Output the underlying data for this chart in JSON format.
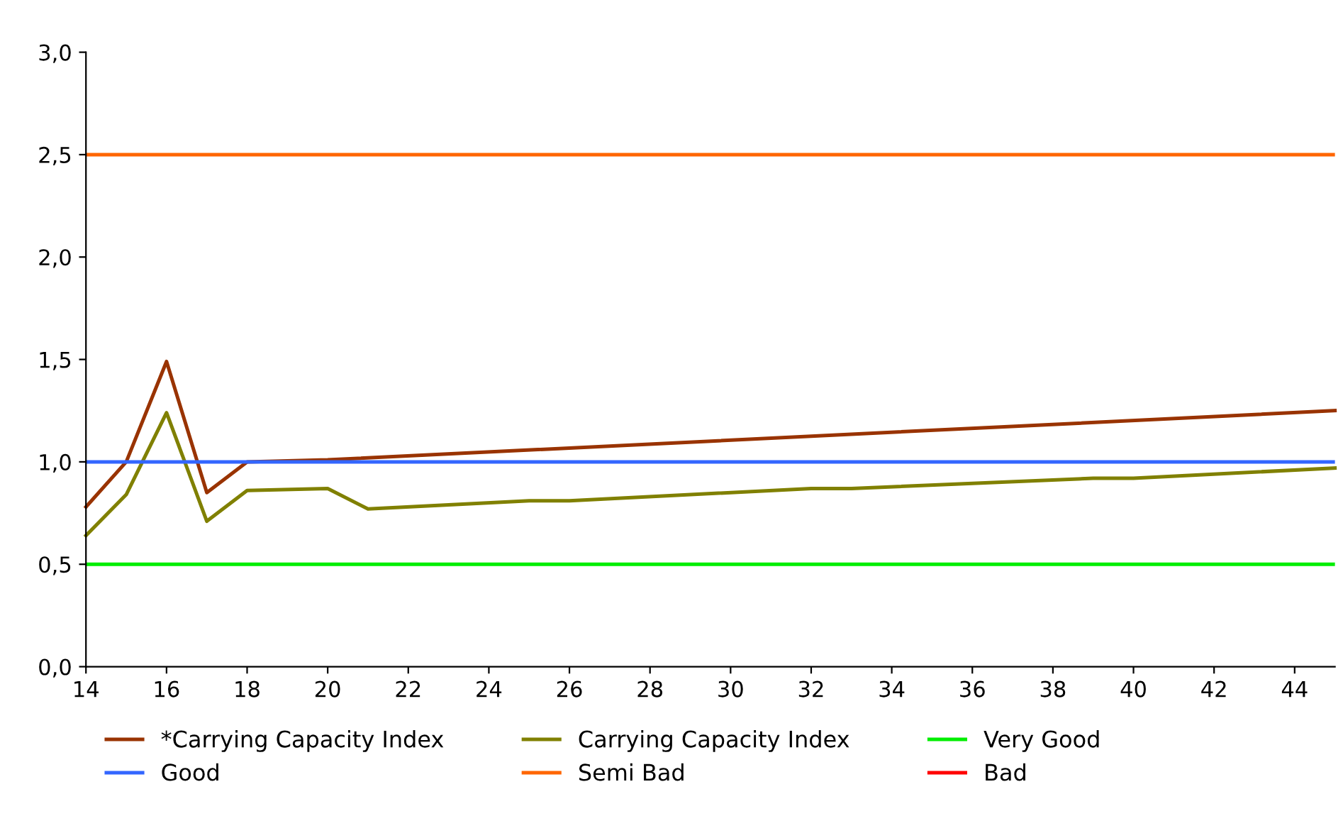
{
  "chart_data": {
    "type": "line",
    "xlim": [
      14,
      45
    ],
    "xticks": [
      14,
      16,
      18,
      20,
      22,
      24,
      26,
      28,
      30,
      32,
      34,
      36,
      38,
      40,
      42,
      44
    ],
    "ylim": [
      0,
      3
    ],
    "yticks": [
      {
        "value": 0,
        "label": "0,0"
      },
      {
        "value": 0.5,
        "label": "0,5"
      },
      {
        "value": 1,
        "label": "1,0"
      },
      {
        "value": 1.5,
        "label": "1,5"
      },
      {
        "value": 2,
        "label": "2,0"
      },
      {
        "value": 2.5,
        "label": "2,5"
      },
      {
        "value": 3,
        "label": "3,0"
      }
    ],
    "grid": false,
    "legend": "bottom",
    "marker": "none",
    "line_style": "solid",
    "series": [
      {
        "name": "*Carrying Capacity Index",
        "color": "#993300",
        "x": [
          14,
          15,
          16,
          17,
          18,
          20,
          45
        ],
        "values": [
          0.78,
          1.0,
          1.49,
          0.85,
          1.0,
          1.01,
          1.25
        ]
      },
      {
        "name": "Carrying Capacity Index",
        "color": "#808000",
        "x": [
          14,
          15,
          16,
          17,
          18,
          20,
          21,
          25,
          26,
          32,
          33,
          39,
          40,
          45
        ],
        "values": [
          0.64,
          0.84,
          1.24,
          0.71,
          0.86,
          0.87,
          0.77,
          0.81,
          0.81,
          0.87,
          0.87,
          0.92,
          0.92,
          0.97
        ]
      },
      {
        "name": "Bad",
        "color": "#ff0000"
      }
    ],
    "ref_lines": [
      {
        "axis": "y",
        "value": 0.5,
        "label": "Very Good",
        "color": "#00ee00"
      },
      {
        "axis": "y",
        "value": 1.0,
        "label": "Good",
        "color": "#3366ff"
      },
      {
        "axis": "y",
        "value": 2.5,
        "label": "Semi Bad",
        "color": "#ff6600"
      }
    ]
  }
}
